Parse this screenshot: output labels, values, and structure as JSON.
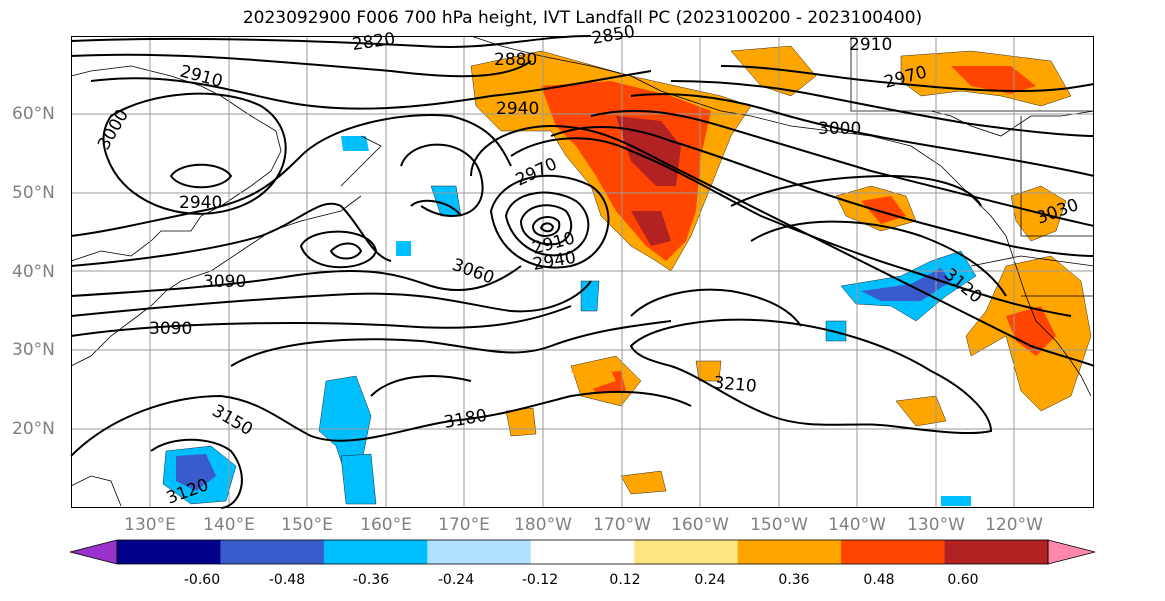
{
  "title": "2023092900 F006 700 hPa height, IVT Landfall PC (2023100200 - 2023100400)",
  "lat_labels": [
    "60°N",
    "50°N",
    "40°N",
    "30°N",
    "20°N"
  ],
  "lon_labels": [
    "130°E",
    "140°E",
    "150°E",
    "160°E",
    "170°E",
    "180°W",
    "170°W",
    "160°W",
    "150°W",
    "140°W",
    "130°W",
    "120°W"
  ],
  "contour_labels": [
    "2820",
    "2850",
    "2880",
    "2910",
    "2910",
    "2940",
    "2940",
    "2970",
    "2970",
    "3000",
    "3000",
    "3030",
    "3060",
    "3090",
    "3090",
    "3120",
    "3120",
    "3150",
    "3180",
    "3210",
    "2910",
    "2940"
  ],
  "colorbar": {
    "colors": [
      "#9932cc",
      "#00008b",
      "#3a5bcc",
      "#00bfff",
      "#b0e2ff",
      "#ffffff",
      "#ffe680",
      "#ffa500",
      "#ff4500",
      "#b22222",
      "#ff88aa"
    ],
    "tick_labels": [
      "-0.60",
      "-0.48",
      "-0.36",
      "-0.24",
      "-0.12",
      "0.12",
      "0.24",
      "0.36",
      "0.48",
      "0.60"
    ]
  }
}
